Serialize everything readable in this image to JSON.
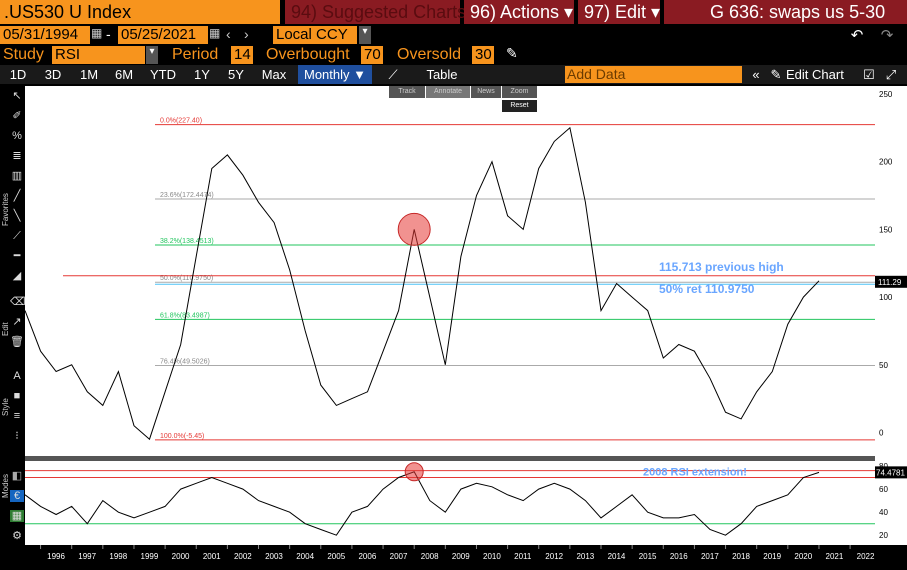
{
  "header": {
    "ticker": ".US530 U Index",
    "suggested": "94) Suggested Charts",
    "actions": "96) Actions ▾",
    "edit": "97) Edit ▾",
    "right_title": "G 636: swaps us 5-30"
  },
  "daterow": {
    "start": "05/31/1994",
    "dash": "-",
    "end": "05/25/2021",
    "currency": "Local CCY",
    "back_icon": "undo-icon",
    "fwd_icon": "redo-icon"
  },
  "studyrow": {
    "study_label": "Study",
    "study_value": "RSI",
    "period_label": "Period",
    "period_value": "14",
    "overbought_label": "Overbought",
    "overbought_value": "70",
    "oversold_label": "Oversold",
    "oversold_value": "30"
  },
  "toolbar": {
    "ranges": [
      "1D",
      "3D",
      "1M",
      "6M",
      "YTD",
      "1Y",
      "5Y",
      "Max"
    ],
    "freq": "Monthly ▼",
    "table": "Table",
    "add_data": "Add Data",
    "edit_chart": "Edit Chart"
  },
  "mini_tools": [
    "Track",
    "Annotate",
    "News",
    "Zoom",
    "Reset"
  ],
  "side_labels": {
    "favorites": "Favorites",
    "edit": "Edit",
    "style": "Style",
    "modes": "Modes"
  },
  "chart_data": {
    "type": "line",
    "x": [
      1995.5,
      1996,
      1996.5,
      1997,
      1997.5,
      1998,
      1998.5,
      1999,
      1999.5,
      2000,
      2000.5,
      2001,
      2001.5,
      2002,
      2002.5,
      2003,
      2003.5,
      2004,
      2004.5,
      2005,
      2005.5,
      2006,
      2006.5,
      2007,
      2007.5,
      2008,
      2008.5,
      2009,
      2009.5,
      2010,
      2010.5,
      2011,
      2011.5,
      2012,
      2012.5,
      2013,
      2013.5,
      2014,
      2014.5,
      2015,
      2015.5,
      2016,
      2016.5,
      2017,
      2017.5,
      2018,
      2018.5,
      2019,
      2019.5,
      2020,
      2020.5,
      2021
    ],
    "values": [
      90,
      60,
      45,
      50,
      30,
      20,
      45,
      5,
      -5,
      30,
      65,
      130,
      195,
      205,
      190,
      170,
      155,
      120,
      75,
      35,
      20,
      25,
      30,
      60,
      90,
      150,
      100,
      50,
      130,
      175,
      200,
      160,
      150,
      195,
      215,
      225,
      170,
      90,
      110,
      100,
      90,
      55,
      65,
      60,
      40,
      15,
      10,
      30,
      45,
      80,
      100,
      112
    ],
    "ylim": [
      -10,
      250
    ],
    "yticks": [
      0,
      50,
      100,
      150,
      200,
      250
    ],
    "xticks": [
      "1996",
      "1997",
      "1998",
      "1999",
      "2000",
      "2001",
      "2002",
      "2003",
      "2004",
      "2005",
      "2006",
      "2007",
      "2008",
      "2009",
      "2010",
      "2011",
      "2012",
      "2013",
      "2014",
      "2015",
      "2016",
      "2017",
      "2018",
      "2019",
      "2020",
      "2021",
      "2022"
    ],
    "fib_levels": [
      {
        "label": "0.0%(227.40)",
        "value": 227.4,
        "color": "#e53935"
      },
      {
        "label": "23.6%(172.4474)",
        "value": 172.4474,
        "color": "#aaaaaa"
      },
      {
        "label": "38.2%(138.4513)",
        "value": 138.4513,
        "color": "#22c55e"
      },
      {
        "label": "50.0%(110.9750)",
        "value": 110.975,
        "color": "#aaaaaa"
      },
      {
        "label": "61.8%(83.4987)",
        "value": 83.4987,
        "color": "#22c55e"
      },
      {
        "label": "76.4%(49.5026)",
        "value": 49.5026,
        "color": "#aaaaaa"
      },
      {
        "label": "100.0%(-5.45)",
        "value": -5.45,
        "color": "#e53935"
      }
    ],
    "prev_high": {
      "value": 115.713,
      "label": "115.713 previous high"
    },
    "ret_label": "50% ret 110.9750",
    "last_value": "111.29",
    "rsi": {
      "values": [
        55,
        45,
        38,
        45,
        30,
        50,
        40,
        35,
        40,
        45,
        60,
        65,
        70,
        65,
        60,
        50,
        45,
        40,
        30,
        25,
        20,
        40,
        45,
        60,
        70,
        75,
        50,
        40,
        60,
        65,
        62,
        55,
        50,
        60,
        65,
        60,
        50,
        35,
        45,
        55,
        40,
        35,
        35,
        38,
        25,
        20,
        30,
        45,
        50,
        55,
        70,
        74.4781
      ],
      "ylim": [
        15,
        80
      ],
      "yticks": [
        20,
        40,
        60,
        80
      ],
      "overbought": 70,
      "oversold": 30,
      "last_value": "74.4781",
      "annotation": "2008 RSI extension!"
    }
  }
}
